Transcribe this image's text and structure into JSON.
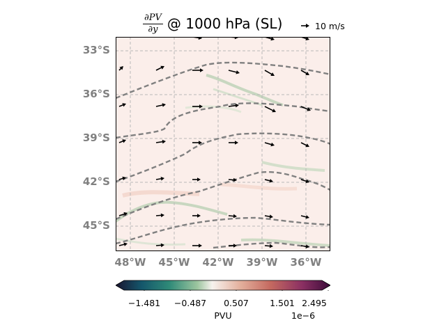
{
  "title": {
    "derivative_numerator": "∂PV",
    "derivative_denominator": "∂y",
    "text": "@ 1000 hPa (SL)"
  },
  "quiver_key": {
    "label": "10 m/s",
    "reference_speed": 10
  },
  "map": {
    "lat_labels": [
      "33°S",
      "36°S",
      "39°S",
      "42°S",
      "45°S"
    ],
    "lon_labels": [
      "48°W",
      "45°W",
      "42°W",
      "39°W",
      "36°W"
    ],
    "lat_range": [
      "-46.7",
      "-32.0"
    ],
    "lon_range": [
      "-49.0",
      "-34.3"
    ],
    "gridlines": true,
    "contour_style": "gray dashed"
  },
  "colorbar": {
    "ticks": [
      "−1.481",
      "−0.487",
      "0.507",
      "1.501",
      "2.495"
    ],
    "label": "PVU",
    "exponent": "1e−6",
    "colormap_colors": [
      "#1a1530",
      "#14566b",
      "#2f8a78",
      "#9cc59f",
      "#f7f2ee",
      "#e3b09d",
      "#c56a60",
      "#8a2f62",
      "#3b0c3a"
    ]
  }
}
